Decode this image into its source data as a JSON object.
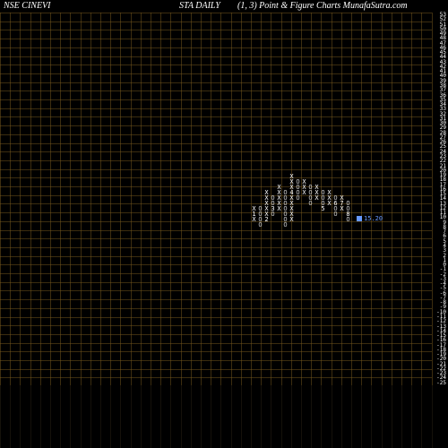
{
  "header": {
    "left": "NSE CINEVI",
    "center": "STA DAILY",
    "right": "(1,  3) Point & Figure    Charts MunafaSutra.com"
  },
  "chart": {
    "type": "point-and-figure",
    "box_size": 1,
    "reversal": 3,
    "background_color": "#000000",
    "grid_color": "rgba(120,90,30,0.5)",
    "grid_cell_w": 11.2,
    "grid_cell_h": 9.7,
    "grid_cols": 43,
    "grid_rows": 43,
    "y_axis_values": [
      53,
      52,
      51,
      50,
      49,
      48,
      47,
      46,
      45,
      44,
      43,
      42,
      41,
      40,
      39,
      38,
      37,
      36,
      35,
      34,
      33,
      32,
      31,
      30,
      29,
      28,
      27,
      26,
      25,
      24,
      23,
      22,
      21,
      20,
      19,
      18,
      17,
      16,
      15,
      14,
      13,
      12,
      11,
      10,
      9,
      8,
      7,
      6,
      5,
      4,
      3,
      2,
      1,
      0,
      -1,
      -2,
      -3,
      -4,
      -5,
      -6,
      -7,
      -8,
      -9,
      -10,
      -11,
      -12,
      -13,
      -14,
      -15,
      -16,
      -17,
      -18,
      -19,
      -20,
      -21,
      -22,
      -23,
      -24,
      -25
    ],
    "y_label_fontsize": 6,
    "y_label_color": "#ffffff",
    "pnf_fontsize": 7,
    "price_marker": {
      "value": "15.20",
      "color": "#6699ff",
      "row_index": 38
    },
    "columns": [
      {
        "col": 28,
        "cells": [
          {
            "r": 36,
            "t": "X"
          },
          {
            "r": 37,
            "t": "1"
          },
          {
            "r": 38,
            "t": "X"
          }
        ]
      },
      {
        "col": 29,
        "cells": [
          {
            "r": 36,
            "t": "O"
          },
          {
            "r": 37,
            "t": "O"
          },
          {
            "r": 38,
            "t": "O"
          },
          {
            "r": 39,
            "t": "O"
          }
        ]
      },
      {
        "col": 30,
        "cells": [
          {
            "r": 33,
            "t": "X"
          },
          {
            "r": 34,
            "t": "X"
          },
          {
            "r": 35,
            "t": "X"
          },
          {
            "r": 36,
            "t": "X"
          },
          {
            "r": 37,
            "t": "X"
          },
          {
            "r": 38,
            "t": "2"
          }
        ]
      },
      {
        "col": 31,
        "cells": [
          {
            "r": 34,
            "t": "O"
          },
          {
            "r": 35,
            "t": "O"
          },
          {
            "r": 36,
            "t": "3"
          },
          {
            "r": 37,
            "t": "O"
          }
        ]
      },
      {
        "col": 32,
        "cells": [
          {
            "r": 32,
            "t": "X"
          },
          {
            "r": 33,
            "t": "X"
          },
          {
            "r": 34,
            "t": "X"
          },
          {
            "r": 35,
            "t": "X"
          },
          {
            "r": 36,
            "t": "X"
          }
        ]
      },
      {
        "col": 33,
        "cells": [
          {
            "r": 33,
            "t": "O"
          },
          {
            "r": 34,
            "t": "O"
          },
          {
            "r": 35,
            "t": "O"
          },
          {
            "r": 36,
            "t": "O"
          },
          {
            "r": 37,
            "t": "O"
          },
          {
            "r": 38,
            "t": "O"
          },
          {
            "r": 39,
            "t": "O"
          }
        ]
      },
      {
        "col": 34,
        "cells": [
          {
            "r": 30,
            "t": "X"
          },
          {
            "r": 31,
            "t": "X"
          },
          {
            "r": 32,
            "t": "X"
          },
          {
            "r": 33,
            "t": "4"
          },
          {
            "r": 34,
            "t": "X"
          },
          {
            "r": 35,
            "t": "X"
          },
          {
            "r": 36,
            "t": "X"
          },
          {
            "r": 37,
            "t": "X"
          },
          {
            "r": 38,
            "t": "X"
          }
        ]
      },
      {
        "col": 35,
        "cells": [
          {
            "r": 31,
            "t": "O"
          },
          {
            "r": 32,
            "t": "O"
          },
          {
            "r": 33,
            "t": "O"
          },
          {
            "r": 34,
            "t": "O"
          }
        ]
      },
      {
        "col": 36,
        "cells": [
          {
            "r": 31,
            "t": "X"
          },
          {
            "r": 32,
            "t": "X"
          },
          {
            "r": 33,
            "t": "X"
          }
        ]
      },
      {
        "col": 37,
        "cells": [
          {
            "r": 32,
            "t": "O"
          },
          {
            "r": 33,
            "t": "O"
          },
          {
            "r": 34,
            "t": "O"
          },
          {
            "r": 35,
            "t": "O"
          }
        ]
      },
      {
        "col": 38,
        "cells": [
          {
            "r": 32,
            "t": "X"
          },
          {
            "r": 33,
            "t": "X"
          },
          {
            "r": 34,
            "t": "X"
          }
        ]
      },
      {
        "col": 39,
        "cells": [
          {
            "r": 33,
            "t": "O"
          },
          {
            "r": 34,
            "t": "O"
          },
          {
            "r": 35,
            "t": "O"
          },
          {
            "r": 36,
            "t": "5"
          }
        ]
      },
      {
        "col": 40,
        "cells": [
          {
            "r": 33,
            "t": "X"
          },
          {
            "r": 34,
            "t": "X"
          },
          {
            "r": 35,
            "t": "X"
          }
        ]
      },
      {
        "col": 41,
        "cells": [
          {
            "r": 34,
            "t": "O"
          },
          {
            "r": 35,
            "t": "6"
          },
          {
            "r": 36,
            "t": "O"
          },
          {
            "r": 37,
            "t": "O"
          }
        ]
      },
      {
        "col": 42,
        "cells": [
          {
            "r": 34,
            "t": "X"
          },
          {
            "r": 35,
            "t": "7"
          },
          {
            "r": 36,
            "t": "X"
          }
        ]
      },
      {
        "col": 43,
        "cells": [
          {
            "r": 35,
            "t": "O"
          },
          {
            "r": 36,
            "t": "O"
          },
          {
            "r": 37,
            "t": "8"
          },
          {
            "r": 38,
            "t": "O"
          }
        ]
      }
    ]
  }
}
